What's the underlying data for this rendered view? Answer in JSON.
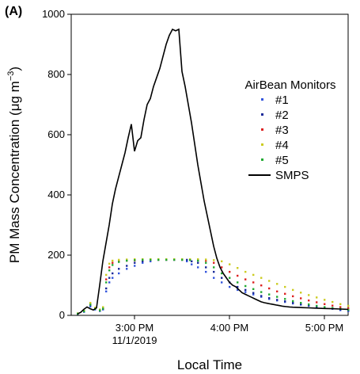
{
  "panel_label": "(A)",
  "chart_data": {
    "type": "scatter",
    "xlabel": "Local Time",
    "ylabel": "PM Mass Concentration (μg m⁻³)",
    "ylabel_parts": {
      "main": "PM Mass Concentration (μg m",
      "sup": "−3",
      "end": ")"
    },
    "xlim": [
      "14:20",
      "17:15"
    ],
    "ylim": [
      0,
      1000
    ],
    "x_units": "minutes since 00:00 on 11/1/2019",
    "xlim_minutes": [
      860,
      1035
    ],
    "y_ticks": [
      0,
      200,
      400,
      600,
      800,
      1000
    ],
    "x_ticks": [
      {
        "t": 900,
        "label": "3:00 PM",
        "sublabel": "11/1/2019"
      },
      {
        "t": 960,
        "label": "4:00 PM",
        "sublabel": ""
      },
      {
        "t": 1020,
        "label": "5:00 PM",
        "sublabel": ""
      }
    ],
    "legend": {
      "title": "AirBean Monitors",
      "placement": "top-right"
    },
    "series": [
      {
        "name": "#1",
        "kind": "points",
        "color": "#3355dd",
        "x": [
          864,
          868,
          872,
          875,
          878,
          880,
          882,
          884,
          886,
          890,
          895,
          900,
          905,
          910,
          915,
          920,
          925,
          930,
          933,
          936,
          940,
          945,
          950,
          955,
          960,
          965,
          970,
          975,
          980,
          985,
          990,
          995,
          1000,
          1005,
          1010,
          1015,
          1020,
          1025,
          1030,
          1035
        ],
        "y": [
          5,
          12,
          30,
          20,
          15,
          20,
          80,
          110,
          125,
          140,
          155,
          165,
          175,
          180,
          185,
          185,
          185,
          185,
          180,
          170,
          160,
          145,
          125,
          110,
          95,
          85,
          78,
          70,
          62,
          55,
          50,
          45,
          40,
          36,
          32,
          28,
          25,
          22,
          18,
          15
        ]
      },
      {
        "name": "#2",
        "kind": "points",
        "color": "#1a2a99",
        "x": [
          864,
          868,
          872,
          875,
          878,
          880,
          882,
          884,
          886,
          890,
          895,
          900,
          905,
          910,
          915,
          920,
          925,
          930,
          933,
          936,
          940,
          945,
          950,
          955,
          960,
          965,
          970,
          975,
          980,
          985,
          990,
          995,
          1000,
          1005,
          1010,
          1015,
          1020,
          1025,
          1030,
          1035
        ],
        "y": [
          6,
          14,
          35,
          22,
          16,
          22,
          90,
          125,
          140,
          155,
          165,
          175,
          180,
          185,
          185,
          185,
          185,
          185,
          185,
          180,
          175,
          160,
          145,
          125,
          110,
          95,
          85,
          75,
          65,
          58,
          52,
          47,
          42,
          38,
          34,
          30,
          27,
          24,
          20,
          17
        ]
      },
      {
        "name": "#3",
        "kind": "points",
        "color": "#dd2222",
        "x": [
          864,
          868,
          872,
          875,
          878,
          880,
          882,
          884,
          886,
          890,
          895,
          900,
          905,
          910,
          915,
          920,
          925,
          930,
          935,
          940,
          945,
          950,
          955,
          960,
          965,
          970,
          975,
          980,
          985,
          990,
          995,
          1000,
          1005,
          1010,
          1015,
          1020,
          1025,
          1030,
          1035
        ],
        "y": [
          6,
          15,
          38,
          24,
          18,
          25,
          120,
          160,
          175,
          180,
          182,
          183,
          185,
          185,
          185,
          185,
          185,
          185,
          185,
          184,
          182,
          175,
          160,
          145,
          132,
          120,
          110,
          100,
          90,
          80,
          72,
          64,
          57,
          50,
          44,
          38,
          33,
          28,
          24
        ]
      },
      {
        "name": "#4",
        "kind": "points",
        "color": "#cccc22",
        "x": [
          864,
          868,
          872,
          875,
          878,
          880,
          882,
          884,
          886,
          890,
          895,
          900,
          905,
          910,
          915,
          920,
          925,
          930,
          935,
          940,
          945,
          950,
          955,
          960,
          965,
          970,
          975,
          980,
          985,
          990,
          995,
          1000,
          1005,
          1010,
          1015,
          1020,
          1025,
          1030,
          1035
        ],
        "y": [
          7,
          16,
          42,
          26,
          20,
          28,
          135,
          172,
          182,
          185,
          186,
          187,
          187,
          187,
          187,
          187,
          187,
          187,
          187,
          187,
          186,
          184,
          180,
          170,
          158,
          145,
          135,
          125,
          115,
          105,
          95,
          85,
          76,
          68,
          60,
          52,
          45,
          38,
          32
        ]
      },
      {
        "name": "#5",
        "kind": "points",
        "color": "#22aa33",
        "x": [
          864,
          868,
          872,
          875,
          878,
          880,
          882,
          884,
          886,
          890,
          895,
          900,
          905,
          910,
          915,
          920,
          925,
          930,
          935,
          940,
          945,
          950,
          955,
          960,
          965,
          970,
          975,
          980,
          985,
          990,
          995,
          1000,
          1005,
          1010,
          1015,
          1020,
          1025,
          1030,
          1035
        ],
        "y": [
          6,
          14,
          36,
          22,
          17,
          23,
          110,
          150,
          168,
          178,
          182,
          184,
          185,
          185,
          185,
          185,
          185,
          185,
          184,
          182,
          175,
          160,
          140,
          125,
          110,
          98,
          88,
          78,
          70,
          62,
          55,
          48,
          42,
          37,
          32,
          28,
          25,
          22,
          19
        ]
      },
      {
        "name": "SMPS",
        "kind": "line",
        "color": "#000000",
        "x": [
          864,
          866,
          868,
          870,
          872,
          874,
          876,
          878,
          880,
          882,
          884,
          886,
          888,
          890,
          892,
          894,
          896,
          898,
          900,
          902,
          904,
          906,
          908,
          910,
          912,
          914,
          916,
          918,
          920,
          922,
          924,
          926,
          928,
          930,
          932,
          934,
          936,
          938,
          940,
          942,
          944,
          946,
          948,
          950,
          952,
          954,
          956,
          958,
          960,
          962,
          964,
          966,
          968,
          970,
          972,
          974,
          976,
          978,
          980,
          982,
          984,
          986,
          988,
          990,
          992,
          994,
          996,
          998,
          1000,
          1005,
          1010,
          1015,
          1020,
          1025,
          1030,
          1035
        ],
        "y": [
          5,
          10,
          20,
          28,
          22,
          18,
          25,
          100,
          180,
          240,
          300,
          370,
          420,
          460,
          500,
          540,
          590,
          635,
          545,
          580,
          590,
          650,
          700,
          720,
          760,
          790,
          820,
          860,
          900,
          930,
          950,
          945,
          950,
          810,
          760,
          700,
          640,
          570,
          500,
          440,
          380,
          330,
          280,
          230,
          190,
          160,
          140,
          125,
          110,
          100,
          95,
          85,
          75,
          70,
          65,
          60,
          55,
          50,
          45,
          42,
          40,
          38,
          36,
          34,
          32,
          30,
          29,
          28,
          27,
          26,
          25,
          24,
          23,
          22,
          21,
          20
        ]
      }
    ]
  }
}
